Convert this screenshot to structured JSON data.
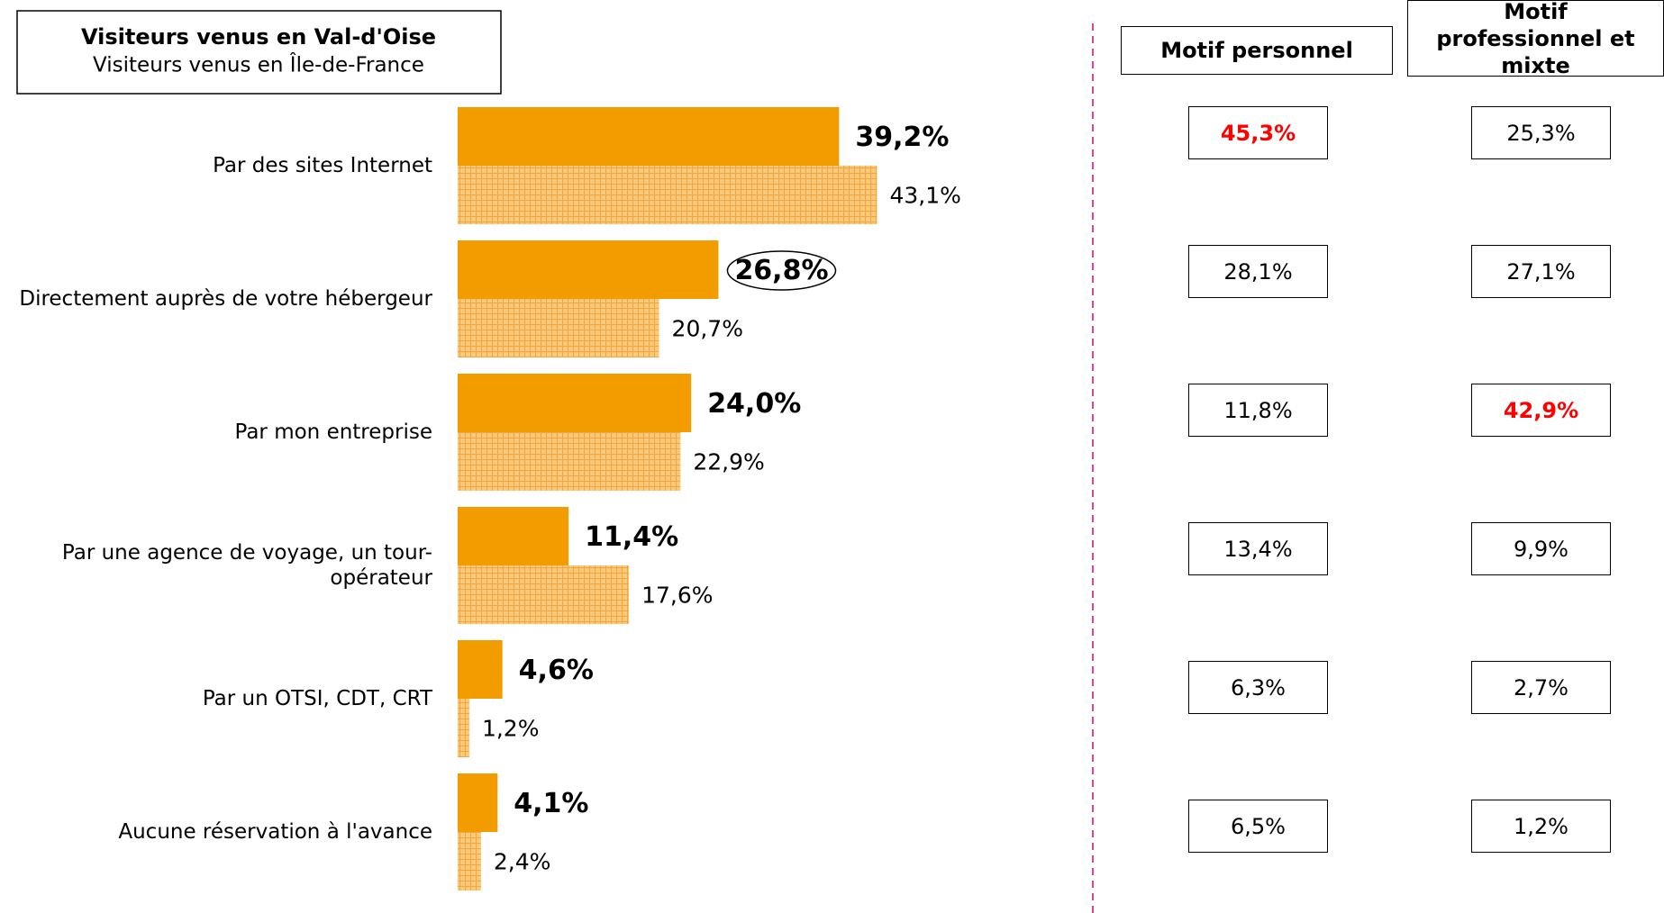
{
  "chart_data": {
    "type": "hbar",
    "categories": [
      "Par des sites Internet",
      "Directement auprès de votre hébergeur",
      "Par mon entreprise",
      "Par une agence de voyage, un tour-opérateur",
      "Par un OTSI, CDT, CRT",
      "Aucune réservation à l'avance"
    ],
    "series": [
      {
        "name": "Visiteurs venus en Val-d'Oise",
        "color": "#f39c00",
        "values": [
          39.2,
          26.8,
          24.0,
          11.4,
          4.6,
          4.1
        ],
        "value_labels": [
          "39,2%",
          "26,8%",
          "24,0%",
          "11,4%",
          "4,6%",
          "4,1%"
        ]
      },
      {
        "name": "Visiteurs venus en Île-de-France",
        "color": "#fbc97a",
        "values": [
          43.1,
          20.7,
          22.9,
          17.6,
          1.2,
          2.4
        ],
        "value_labels": [
          "43,1%",
          "20,7%",
          "22,9%",
          "17,6%",
          "1,2%",
          "2,4%"
        ]
      }
    ],
    "circled_label": {
      "series": 0,
      "index": 1
    }
  },
  "table": {
    "columns": [
      "Motif personnel",
      "Motif professionnel et mixte"
    ],
    "rows": [
      [
        "45,3%",
        "25,3%"
      ],
      [
        "28,1%",
        "27,1%"
      ],
      [
        "11,8%",
        "42,9%"
      ],
      [
        "13,4%",
        "9,9%"
      ],
      [
        "6,3%",
        "2,7%"
      ],
      [
        "6,5%",
        "1,2%"
      ]
    ],
    "highlight_color": "#ff0000",
    "highlighted": [
      [
        0,
        0
      ],
      [
        2,
        1
      ]
    ]
  }
}
